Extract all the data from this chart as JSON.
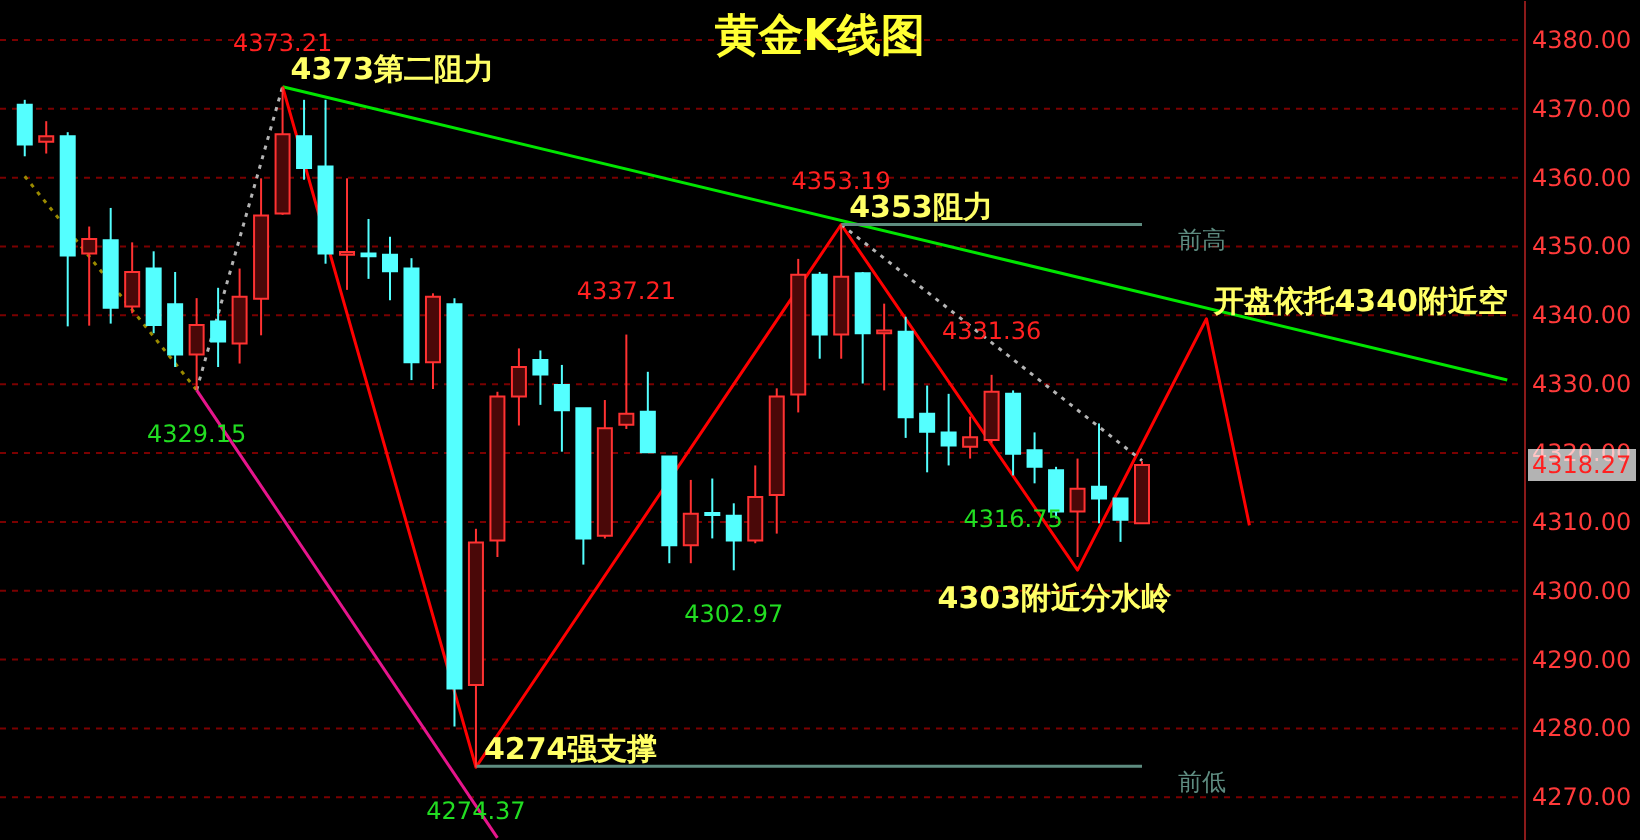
{
  "chart_data": {
    "type": "candlestick",
    "title": "黄金K线图",
    "categories": [
      null,
      null,
      null,
      null,
      null,
      null,
      null,
      null,
      null,
      null,
      null,
      null,
      null,
      null,
      null,
      null,
      null,
      null,
      null,
      null,
      null,
      null,
      null,
      null,
      null,
      null,
      null,
      null,
      null,
      null,
      null,
      null,
      null,
      null,
      null,
      null,
      null,
      null,
      null,
      null,
      null,
      null,
      null,
      null,
      null,
      null,
      null,
      null,
      null,
      null,
      null,
      null,
      null,
      null,
      null,
      null,
      null,
      null,
      null,
      null,
      null,
      null,
      null,
      null,
      null,
      null,
      null,
      null,
      null,
      null
    ],
    "ohlc": [
      [
        4370.6,
        4371.3,
        4363.1,
        4364.8
      ],
      [
        4365.2,
        4368.2,
        4363.5,
        4366.0
      ],
      [
        4366.0,
        4366.6,
        4338.4,
        4348.7
      ],
      [
        4349.0,
        4352.9,
        4338.5,
        4351.1
      ],
      [
        4350.9,
        4355.6,
        4338.8,
        4341.1
      ],
      [
        4341.3,
        4350.6,
        4340.3,
        4346.3
      ],
      [
        4346.8,
        4349.3,
        4337.4,
        4338.6
      ],
      [
        4341.6,
        4346.3,
        4332.5,
        4334.3
      ],
      [
        4334.3,
        4342.5,
        4329.15,
        4338.6
      ],
      [
        4339.1,
        4344.0,
        4332.5,
        4336.2
      ],
      [
        4335.9,
        4346.8,
        4333.0,
        4342.7
      ],
      [
        4342.4,
        4359.9,
        4337.1,
        4354.5
      ],
      [
        4354.8,
        4373.21,
        4354.6,
        4366.3
      ],
      [
        4366.0,
        4371.3,
        4359.7,
        4361.4
      ],
      [
        4361.6,
        4371.3,
        4347.5,
        4349.0
      ],
      [
        4348.8,
        4359.9,
        4343.7,
        4349.2
      ],
      [
        4349.0,
        4354.0,
        4345.3,
        4348.6
      ],
      [
        4348.8,
        4351.4,
        4342.2,
        4346.4
      ],
      [
        4346.8,
        4348.3,
        4330.6,
        4333.2
      ],
      [
        4333.2,
        4343.2,
        4329.3,
        4342.7
      ],
      [
        4341.6,
        4342.5,
        4280.3,
        4285.8
      ],
      [
        4286.3,
        4309.0,
        4274.37,
        4307.0
      ],
      [
        4307.3,
        4328.9,
        4304.9,
        4328.2
      ],
      [
        4328.2,
        4335.2,
        4324.0,
        4332.5
      ],
      [
        4333.5,
        4334.9,
        4327.0,
        4331.4
      ],
      [
        4329.9,
        4332.8,
        4320.2,
        4326.2
      ],
      [
        4326.5,
        4326.5,
        4303.8,
        4307.6
      ],
      [
        4308.0,
        4327.7,
        4307.6,
        4323.6
      ],
      [
        4324.1,
        4337.21,
        4323.5,
        4325.7
      ],
      [
        4326.0,
        4331.8,
        4320.1,
        4320.1
      ],
      [
        4319.5,
        4319.5,
        4304.0,
        4306.6
      ],
      [
        4306.6,
        4316.1,
        4304.0,
        4311.2
      ],
      [
        4311.3,
        4316.3,
        4307.6,
        4311.0
      ],
      [
        4310.9,
        4312.7,
        4302.97,
        4307.3
      ],
      [
        4307.3,
        4318.2,
        4306.9,
        4313.6
      ],
      [
        4313.9,
        4329.4,
        4308.3,
        4328.2
      ],
      [
        4328.5,
        4348.2,
        4325.9,
        4345.9
      ],
      [
        4345.9,
        4346.3,
        4333.7,
        4337.2
      ],
      [
        4337.2,
        4353.19,
        4333.7,
        4345.6
      ],
      [
        4346.1,
        4346.3,
        4330.1,
        4337.4
      ],
      [
        4337.4,
        4341.7,
        4329.1,
        4337.8
      ],
      [
        4337.6,
        4339.8,
        4322.2,
        4325.2
      ],
      [
        4325.7,
        4329.8,
        4317.2,
        4323.1
      ],
      [
        4323.0,
        4328.6,
        4318.2,
        4321.1
      ],
      [
        4320.9,
        4325.3,
        4319.2,
        4322.3
      ],
      [
        4321.9,
        4331.36,
        4321.5,
        4328.9
      ],
      [
        4328.6,
        4329.1,
        4316.75,
        4319.9
      ],
      [
        4320.4,
        4323.0,
        4315.6,
        4318.0
      ],
      [
        4317.5,
        4318.0,
        4310.5,
        4311.5
      ],
      [
        4311.5,
        4319.2,
        4304.9,
        4314.8
      ],
      [
        4315.1,
        4324.3,
        4309.8,
        4313.4
      ],
      [
        4313.4,
        4313.4,
        4307.1,
        4310.3
      ],
      [
        4309.8,
        4318.8,
        4309.8,
        4318.27
      ],
      null,
      null,
      null,
      null,
      null,
      null,
      null,
      null,
      null,
      null,
      null,
      null,
      null,
      null,
      null,
      null,
      null
    ],
    "colors": [
      "#54ffff",
      "#ff3232",
      "#54ffff",
      "#ff3232",
      "#54ffff",
      "#ff3232",
      "#54ffff",
      "#54ffff",
      "#ff3232",
      "#54ffff",
      "#ff3232",
      "#ff3232",
      "#ff3232",
      "#54ffff",
      "#54ffff",
      "#ff3232",
      "#54ffff",
      "#54ffff",
      "#54ffff",
      "#ff3232",
      "#54ffff",
      "#ff3232",
      "#ff3232",
      "#ff3232",
      "#54ffff",
      "#54ffff",
      "#54ffff",
      "#ff3232",
      "#ff3232",
      "#54ffff",
      "#54ffff",
      "#ff3232",
      "#54ffff",
      "#54ffff",
      "#ff3232",
      "#ff3232",
      "#ff3232",
      "#54ffff",
      "#ff3232",
      "#54ffff",
      "#ff3232",
      "#54ffff",
      "#54ffff",
      "#54ffff",
      "#ff3232",
      "#ff3232",
      "#54ffff",
      "#54ffff",
      "#54ffff",
      "#ff3232",
      "#54ffff",
      "#54ffff",
      "#ff3232",
      null,
      null,
      null,
      null,
      null,
      null,
      null,
      null,
      null,
      null,
      null,
      null,
      null,
      null,
      null,
      null,
      null
    ],
    "series": [
      {
        "type": "line",
        "color": "#00e600",
        "values": [
          null,
          null,
          null,
          null,
          null,
          null,
          null,
          null,
          null,
          null,
          null,
          null,
          4373.21,
          null,
          null,
          null,
          null,
          null,
          null,
          null,
          null,
          null,
          null,
          null,
          null,
          null,
          null,
          null,
          null,
          null,
          null,
          null,
          null,
          null,
          null,
          null,
          null,
          null,
          null,
          null,
          null,
          null,
          null,
          null,
          null,
          null,
          null,
          null,
          null,
          null,
          null,
          null,
          null,
          null,
          null,
          null,
          null,
          null,
          null,
          null,
          null,
          null,
          null,
          null,
          null,
          null,
          null,
          null,
          null,
          4330.6
        ]
      },
      {
        "type": "line",
        "color": "#ff0000",
        "values": [
          null,
          null,
          null,
          null,
          null,
          null,
          null,
          null,
          null,
          null,
          null,
          null,
          4373.21,
          null,
          null,
          null,
          null,
          null,
          null,
          null,
          null,
          4274.37,
          null,
          null,
          null,
          null,
          null,
          null,
          null,
          null,
          null,
          null,
          null,
          null,
          null,
          null,
          null,
          null,
          4353.19,
          null,
          null,
          null,
          null,
          null,
          null,
          null,
          null,
          null,
          null,
          4303,
          null,
          null,
          null,
          null,
          null,
          4339.5,
          null,
          4309.5,
          null,
          null,
          null,
          null,
          null,
          null,
          null,
          null,
          null,
          null,
          null,
          null
        ]
      },
      {
        "type": "line",
        "color": "#e6158c",
        "values": [
          null,
          null,
          null,
          null,
          null,
          null,
          null,
          null,
          4329.15,
          null,
          null,
          null,
          null,
          null,
          null,
          null,
          null,
          null,
          null,
          null,
          null,
          null,
          4264.1,
          null,
          null,
          null,
          null,
          null,
          null,
          null,
          null,
          null,
          null,
          null,
          null,
          null,
          null,
          null,
          null,
          null,
          null,
          null,
          null,
          null,
          null,
          null,
          null,
          null,
          null,
          null,
          null,
          null,
          null,
          null,
          null,
          null,
          null,
          null,
          null,
          null,
          null,
          null,
          null,
          null,
          null,
          null,
          null,
          null,
          null,
          null
        ]
      },
      {
        "type": "line",
        "color": "#9a8a00",
        "line_style": "dotted",
        "values": [
          4360.2,
          null,
          null,
          null,
          null,
          null,
          null,
          null,
          4329.15,
          null,
          null,
          null,
          null,
          null,
          null,
          null,
          null,
          null,
          null,
          null,
          null,
          null,
          null,
          null,
          null,
          null,
          null,
          null,
          null,
          null,
          null,
          null,
          null,
          null,
          null,
          null,
          null,
          null,
          null,
          null,
          null,
          null,
          null,
          null,
          null,
          null,
          null,
          null,
          null,
          null,
          null,
          null,
          null,
          null,
          null,
          null,
          null,
          null,
          null,
          null,
          null,
          null,
          null,
          null,
          null,
          null,
          null,
          null,
          null,
          null
        ]
      },
      {
        "type": "line",
        "color": "#b4b4b4",
        "line_style": "dotted",
        "values": [
          null,
          null,
          null,
          null,
          null,
          null,
          null,
          null,
          4329.15,
          null,
          null,
          null,
          4373.21,
          null,
          null,
          null,
          null,
          null,
          null,
          null,
          null,
          null,
          null,
          null,
          null,
          null,
          null,
          null,
          null,
          null,
          null,
          null,
          null,
          null,
          null,
          null,
          null,
          null,
          null,
          null,
          null,
          null,
          null,
          null,
          null,
          null,
          null,
          null,
          null,
          null,
          null,
          null,
          null,
          null,
          null,
          null,
          null,
          null,
          null,
          null,
          null,
          null,
          null,
          null,
          null,
          null,
          null,
          null,
          null,
          null
        ]
      },
      {
        "type": "line",
        "color": "#b4b4b4",
        "line_style": "dotted",
        "values": [
          null,
          null,
          null,
          null,
          null,
          null,
          null,
          null,
          null,
          null,
          null,
          null,
          null,
          null,
          null,
          null,
          null,
          null,
          null,
          null,
          null,
          null,
          null,
          null,
          null,
          null,
          null,
          null,
          null,
          null,
          null,
          null,
          null,
          null,
          null,
          null,
          null,
          null,
          4353.19,
          null,
          null,
          null,
          null,
          null,
          null,
          null,
          null,
          null,
          null,
          null,
          null,
          null,
          4318.9,
          null,
          null,
          null,
          null,
          null,
          null,
          null,
          null,
          null,
          null,
          null,
          null,
          null,
          null,
          null,
          null,
          null
        ]
      },
      {
        "type": "line",
        "name": "前高",
        "color": "#5e8c80",
        "values": [
          null,
          null,
          null,
          null,
          null,
          null,
          null,
          null,
          null,
          null,
          null,
          null,
          null,
          null,
          null,
          null,
          null,
          null,
          null,
          null,
          null,
          null,
          null,
          null,
          null,
          null,
          null,
          null,
          null,
          null,
          null,
          null,
          null,
          null,
          null,
          null,
          null,
          null,
          4353.2,
          null,
          null,
          null,
          null,
          null,
          null,
          null,
          null,
          null,
          null,
          null,
          null,
          null,
          4353.2,
          null,
          null,
          null,
          null,
          null,
          null,
          null,
          null,
          null,
          null,
          null,
          null,
          null,
          null,
          null,
          null,
          null
        ]
      },
      {
        "type": "line",
        "name": "前低",
        "color": "#5e8c80",
        "values": [
          null,
          null,
          null,
          null,
          null,
          null,
          null,
          null,
          null,
          null,
          null,
          null,
          null,
          null,
          null,
          null,
          null,
          null,
          null,
          null,
          null,
          4274.5,
          null,
          null,
          null,
          null,
          null,
          null,
          null,
          null,
          null,
          null,
          null,
          null,
          null,
          null,
          null,
          null,
          null,
          null,
          null,
          null,
          null,
          null,
          null,
          null,
          null,
          null,
          null,
          null,
          null,
          null,
          4274.5,
          null,
          null,
          null,
          null,
          null,
          null,
          null,
          null,
          null,
          null,
          null,
          null,
          null,
          null,
          null,
          null,
          null
        ]
      }
    ],
    "annotations": [
      {
        "text": "4373.21",
        "y": 4373.21
      },
      {
        "text": "4329.15",
        "y": 4329.15
      },
      {
        "text": "4274.37",
        "y": 4274.37
      },
      {
        "text": "4337.21",
        "y": 4337.21
      },
      {
        "text": "4302.97",
        "y": 4302.97
      },
      {
        "text": "4353.19",
        "y": 4353.19
      },
      {
        "text": "4331.36",
        "y": 4331.36
      },
      {
        "text": "4316.75",
        "y": 4316.75
      },
      "4318.27",
      "4373第二阻力",
      "4274强支撑",
      "4353阻力",
      "4303附近分水岭",
      "开盘依托4340附近空"
    ],
    "ylim": [
      4263.8,
      4385.8
    ],
    "yticks": [
      {
        "value": 4270,
        "label": "4270.00"
      },
      {
        "value": 4280,
        "label": "4280.00"
      },
      {
        "value": 4290,
        "label": "4290.00"
      },
      {
        "value": 4300,
        "label": "4300.00"
      },
      {
        "value": 4310,
        "label": "4310.00"
      },
      {
        "value": 4320,
        "label": "4320.00"
      },
      {
        "value": 4330,
        "label": "4330.00"
      },
      {
        "value": 4340,
        "label": "4340.00"
      },
      {
        "value": 4350,
        "label": "4350.00"
      },
      {
        "value": 4360,
        "label": "4360.00"
      },
      {
        "value": 4370,
        "label": "4370.00"
      },
      {
        "value": 4380,
        "label": "4380.00"
      }
    ],
    "grid": "y",
    "tick_labels": "y"
  }
}
